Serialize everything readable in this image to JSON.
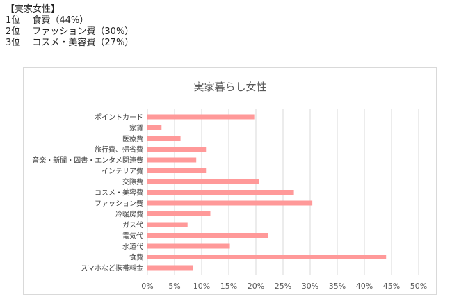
{
  "summary": {
    "heading": "【実家女性】",
    "lines": [
      "1位　 食費（44%）",
      "2位　 ファッション費（30%）",
      "3位　 コスメ・美容費（27%）"
    ]
  },
  "chart_data": {
    "type": "bar",
    "orientation": "horizontal",
    "title": "実家暮らし女性",
    "categories": [
      "ポイントカード",
      "家賃",
      "医療費",
      "旅行費、帰省費",
      "音楽・新聞・図書・エンタメ関連費",
      "インテリア費",
      "交際費",
      "コスメ・美容費",
      "ファッション費",
      "冷暖房費",
      "ガス代",
      "電気代",
      "水道代",
      "食費",
      "スマホなど携帯料金"
    ],
    "values": [
      19.7,
      2.6,
      6.1,
      10.8,
      9.0,
      10.8,
      20.6,
      27.0,
      30.4,
      11.6,
      7.4,
      22.3,
      15.2,
      44.0,
      8.4
    ],
    "xlim": [
      0,
      50
    ],
    "x_ticks": [
      "0%",
      "5%",
      "10%",
      "15%",
      "20%",
      "25%",
      "30%",
      "35%",
      "40%",
      "45%",
      "50%"
    ],
    "grid": true,
    "bar_color": "#ff9999",
    "grid_color": "#d9d9d9"
  }
}
